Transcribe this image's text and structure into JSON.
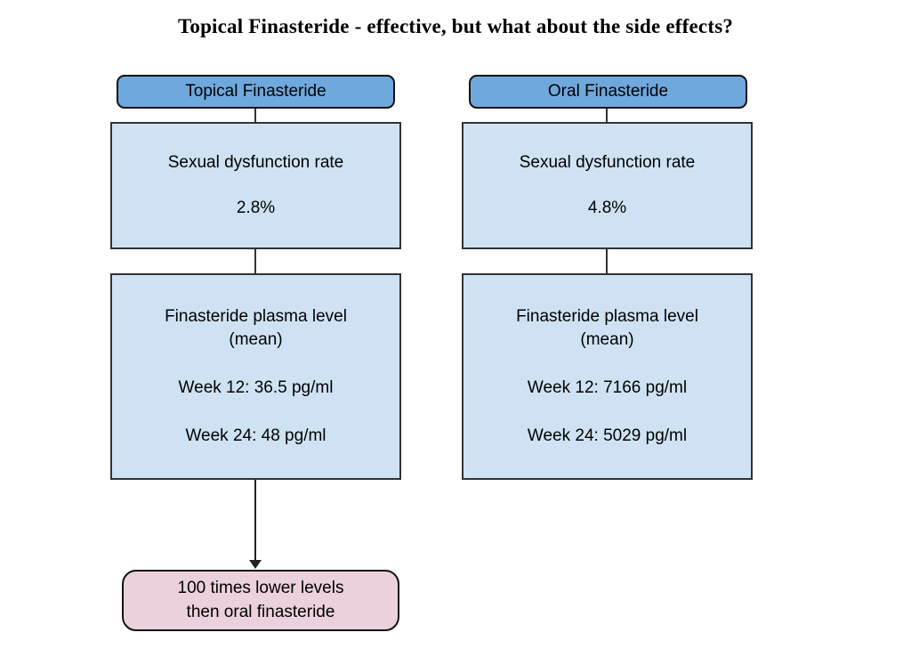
{
  "title": "Topical Finasteride - effective, but what about the side effects?",
  "colors": {
    "header_fill": "#6fa8dc",
    "box_fill": "#cfe2f3",
    "conclusion_fill": "#ead1dc",
    "border_dark": "#111111",
    "border_box": "#333333",
    "text": "#000000",
    "background": "#ffffff"
  },
  "columns": [
    {
      "id": "topical",
      "header": "Topical Finasteride",
      "boxes": [
        {
          "label": "Sexual dysfunction rate",
          "value": "2.8%"
        },
        {
          "label_line1": "Finasteride plasma level",
          "label_line2": "(mean)",
          "week12": "Week 12: 36.5 pg/ml",
          "week24": "Week 24: 48 pg/ml"
        }
      ],
      "conclusion": {
        "line1": "100 times lower levels",
        "line2": "then oral finasteride"
      }
    },
    {
      "id": "oral",
      "header": "Oral Finasteride",
      "boxes": [
        {
          "label": "Sexual dysfunction rate",
          "value": "4.8%"
        },
        {
          "label_line1": "Finasteride plasma level",
          "label_line2": "(mean)",
          "week12": "Week 12: 7166 pg/ml",
          "week24": "Week 24: 5029 pg/ml"
        }
      ]
    }
  ]
}
